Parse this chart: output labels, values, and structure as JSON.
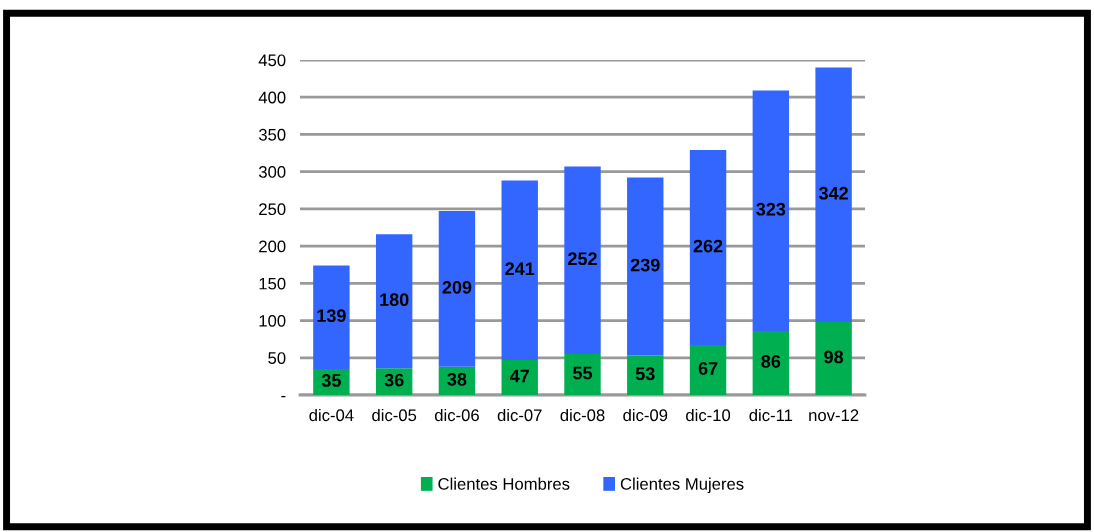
{
  "chart_data": {
    "type": "bar",
    "stacked": true,
    "data_labels": true,
    "grid": "y",
    "legend": "bottom",
    "categories": [
      "dic-04",
      "dic-05",
      "dic-06",
      "dic-07",
      "dic-08",
      "dic-09",
      "dic-10",
      "dic-11",
      "nov-12"
    ],
    "series": [
      {
        "name": "Clientes Hombres",
        "color": "#00b050",
        "values": [
          35,
          36,
          38,
          47,
          55,
          53,
          67,
          86,
          98
        ]
      },
      {
        "name": "Clientes Mujeres",
        "color": "#3366ff",
        "values": [
          139,
          180,
          209,
          241,
          252,
          239,
          262,
          323,
          342
        ]
      }
    ],
    "ylim": [
      0,
      450
    ],
    "yticks": [
      {
        "value": 0,
        "label": "-"
      },
      50,
      100,
      150,
      200,
      250,
      300,
      350,
      400,
      450
    ]
  }
}
